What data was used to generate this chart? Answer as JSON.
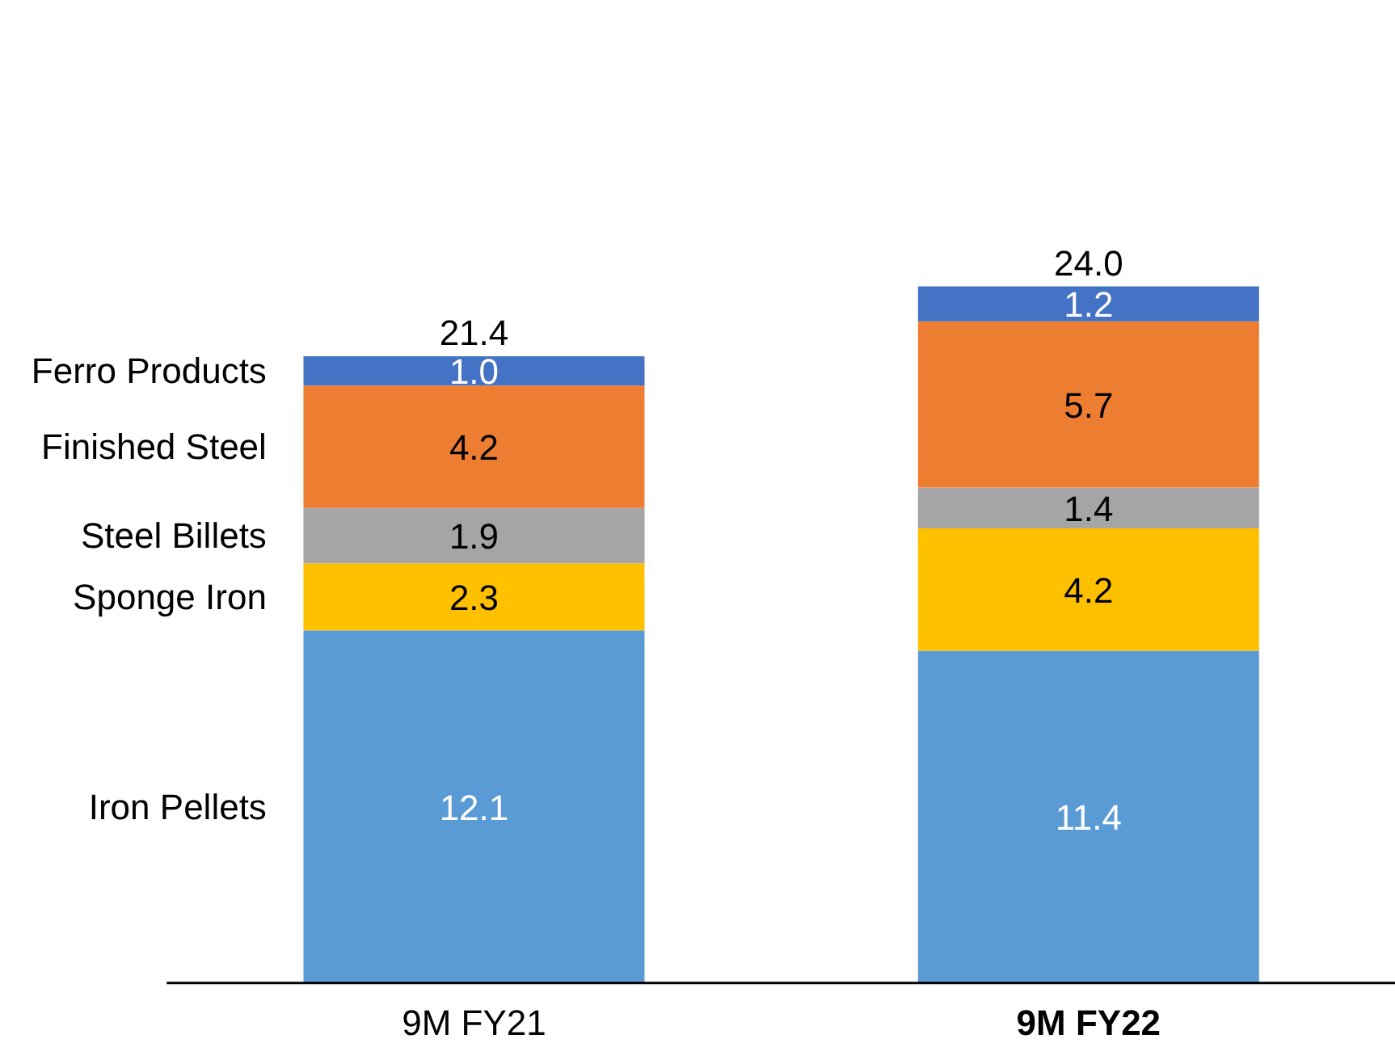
{
  "chart_data": {
    "type": "bar",
    "stacked": true,
    "categories": [
      "9M FY21",
      "9M FY22"
    ],
    "series": [
      {
        "name": "Iron Pellets",
        "color": "#5b9bd5",
        "values": [
          12.1,
          11.4
        ],
        "value_labels": [
          "12.1",
          "11.4"
        ]
      },
      {
        "name": "Sponge Iron",
        "color": "#ffc000",
        "values": [
          2.3,
          4.2
        ],
        "value_labels": [
          "2.3",
          "4.2"
        ]
      },
      {
        "name": "Steel Billets",
        "color": "#a5a5a5",
        "values": [
          1.9,
          1.4
        ],
        "value_labels": [
          "1.9",
          "1.4"
        ]
      },
      {
        "name": "Finished Steel",
        "color": "#ed7d31",
        "values": [
          4.2,
          5.7
        ],
        "value_labels": [
          "4.2",
          "5.7"
        ]
      },
      {
        "name": "Ferro Products",
        "color": "#4472c4",
        "values": [
          1.0,
          1.2
        ],
        "value_labels": [
          "1.0",
          "1.2"
        ]
      }
    ],
    "totals": [
      "21.4",
      "24.0"
    ],
    "legend": false,
    "grid": false
  }
}
